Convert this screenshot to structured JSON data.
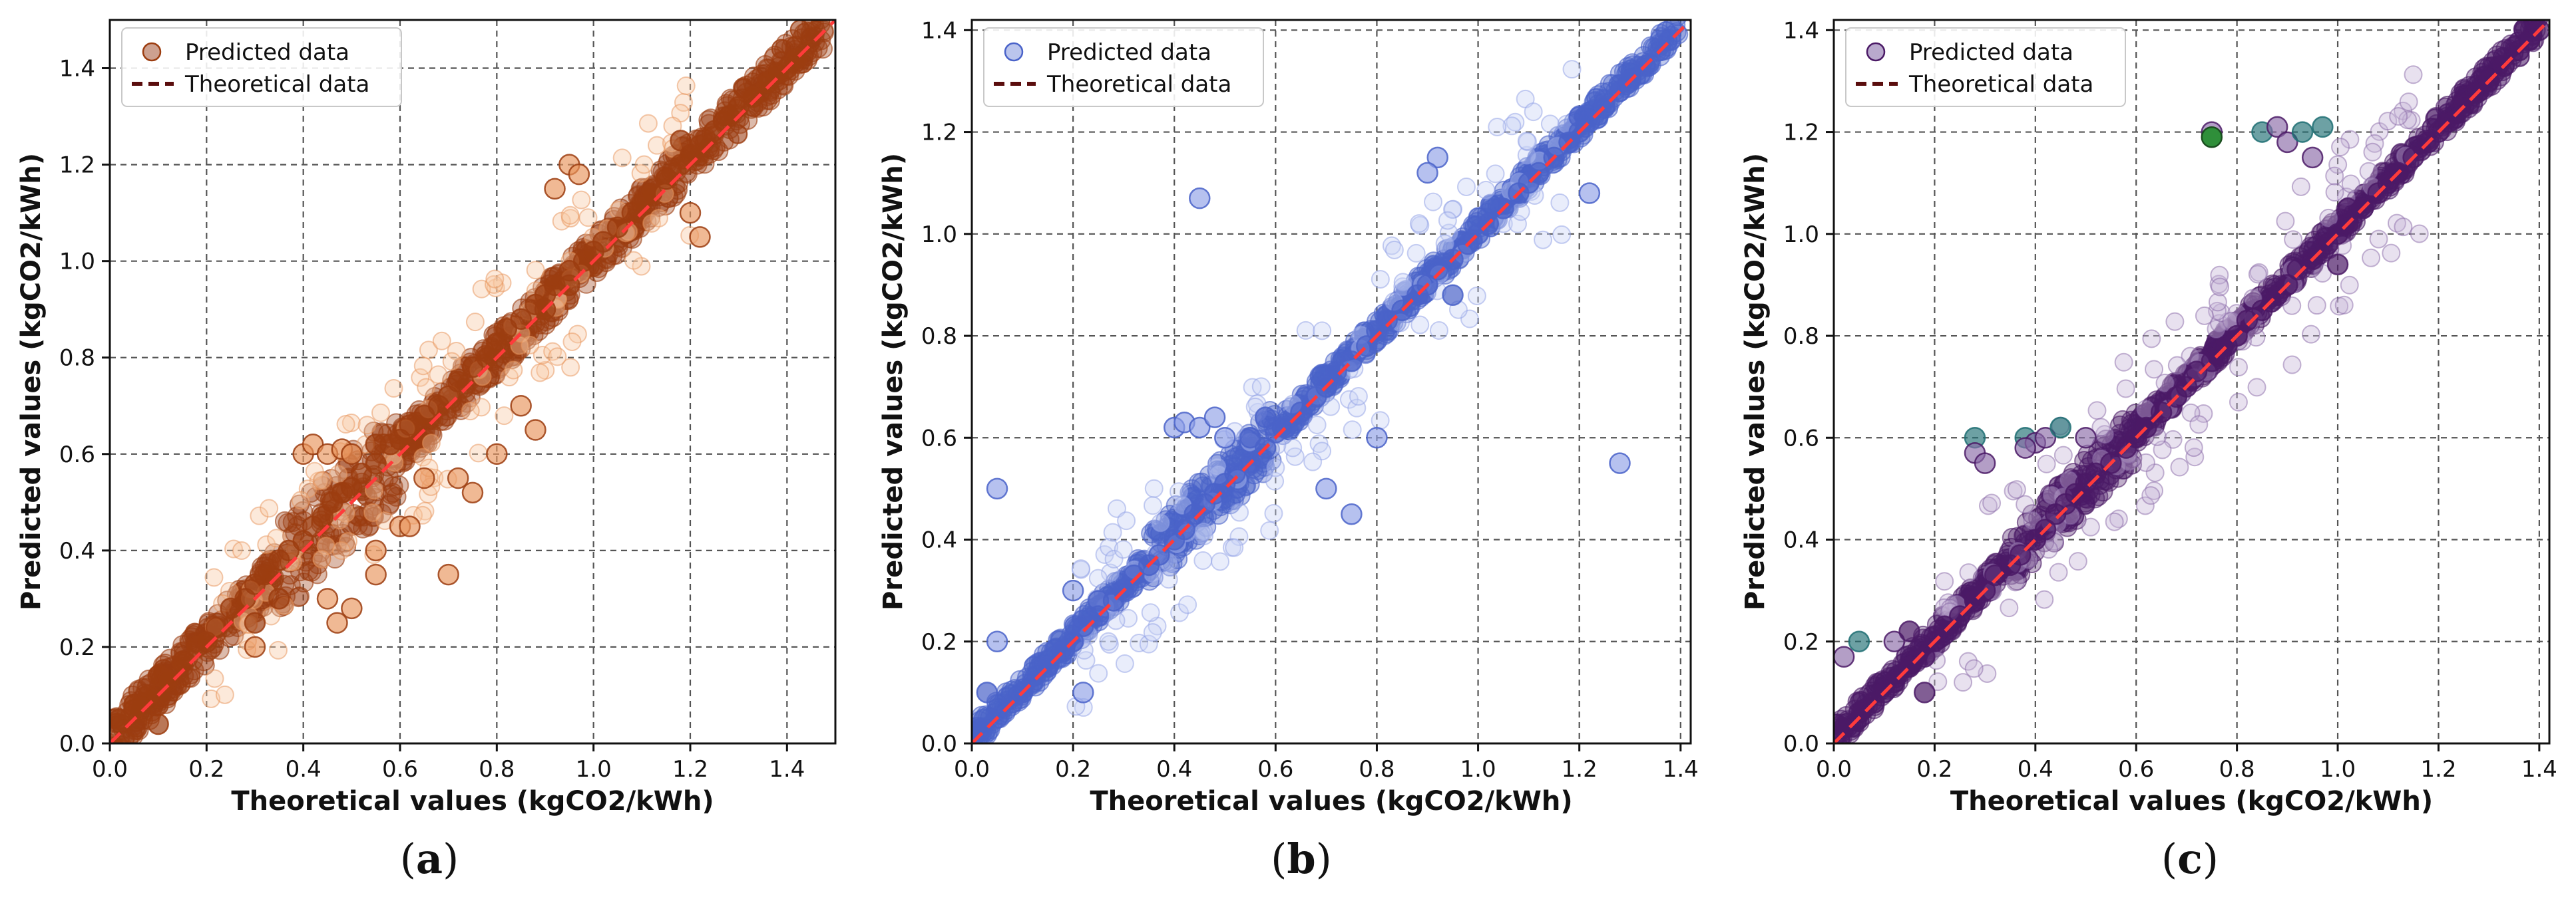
{
  "figure": {
    "captions": [
      {
        "open": "(",
        "letter": "a",
        "close": ")"
      },
      {
        "open": "(",
        "letter": "b",
        "close": ")"
      },
      {
        "open": "(",
        "letter": "c",
        "close": ")"
      }
    ]
  },
  "chart_data": [
    {
      "type": "scatter",
      "xlabel": "Theoretical values (kgCO2/kWh)",
      "ylabel": "Predicted values (kgCO2/kWh)",
      "xlim": [
        0.0,
        1.5
      ],
      "ylim": [
        0.0,
        1.5
      ],
      "xticks": [
        0.0,
        0.2,
        0.4,
        0.6,
        0.8,
        1.0,
        1.2,
        1.4
      ],
      "xtick_labels": [
        "0.0",
        "0.2",
        "0.4",
        "0.6",
        "0.8",
        "1.0",
        "1.2",
        "1.4"
      ],
      "yticks": [
        0.0,
        0.2,
        0.4,
        0.6,
        0.8,
        1.0,
        1.2,
        1.4
      ],
      "ytick_labels": [
        "0.0",
        "0.2",
        "0.4",
        "0.6",
        "0.8",
        "1.0",
        "1.2",
        "1.4"
      ],
      "grid": true,
      "legend_position": "top-left",
      "legend": [
        "Predicted data",
        "Theoretical data"
      ],
      "colors": {
        "main": "#9c3d10",
        "light": "#e8935a",
        "pale": "#f7c9a3",
        "legend_marker": "#c08a74",
        "theory_line": "#5a0d0d",
        "overlay_line": "#ff3b3b"
      },
      "series": [
        {
          "name": "Predicted data",
          "kind": "scatter",
          "x": [
            0.02,
            0.05,
            0.08,
            0.1,
            0.12,
            0.15,
            0.18,
            0.2,
            0.22,
            0.25,
            0.28,
            0.3,
            0.32,
            0.35,
            0.37,
            0.4,
            0.42,
            0.44,
            0.46,
            0.48,
            0.5,
            0.52,
            0.55,
            0.58,
            0.6,
            0.62,
            0.65,
            0.68,
            0.7,
            0.72,
            0.75,
            0.78,
            0.8,
            0.82,
            0.85,
            0.88,
            0.9,
            0.92,
            0.95,
            0.98,
            1.0,
            1.02,
            1.05,
            1.08,
            1.1,
            1.12,
            1.15,
            1.18,
            1.2,
            1.22,
            1.25,
            1.28,
            1.3,
            1.33,
            1.36,
            1.38,
            1.4,
            1.42,
            0.4,
            0.42,
            0.45,
            0.48,
            0.5,
            0.55,
            0.3,
            0.35,
            0.92,
            0.95,
            0.97,
            1.2,
            1.22,
            0.45,
            0.5,
            0.47,
            0.55,
            0.6,
            0.65,
            0.7,
            0.75,
            0.8,
            0.85,
            0.9,
            0.95,
            0.62,
            0.72,
            0.55,
            0.88,
            1.18,
            0.3,
            0.05,
            0.1
          ],
          "y": [
            0.05,
            0.07,
            0.1,
            0.14,
            0.13,
            0.17,
            0.2,
            0.21,
            0.24,
            0.28,
            0.3,
            0.33,
            0.35,
            0.38,
            0.4,
            0.42,
            0.45,
            0.47,
            0.5,
            0.52,
            0.53,
            0.56,
            0.58,
            0.62,
            0.63,
            0.66,
            0.68,
            0.7,
            0.72,
            0.75,
            0.78,
            0.8,
            0.83,
            0.86,
            0.88,
            0.91,
            0.93,
            0.95,
            0.98,
            1.0,
            1.02,
            1.04,
            1.07,
            1.1,
            1.12,
            1.14,
            1.17,
            1.2,
            1.22,
            1.24,
            1.27,
            1.3,
            1.32,
            1.34,
            1.37,
            1.39,
            1.4,
            1.42,
            0.6,
            0.62,
            0.6,
            0.61,
            0.6,
            0.62,
            0.25,
            0.3,
            1.15,
            1.2,
            1.18,
            1.1,
            1.05,
            0.3,
            0.28,
            0.25,
            0.35,
            0.45,
            0.55,
            0.35,
            0.52,
            0.6,
            0.7,
            0.9,
            0.95,
            0.45,
            0.55,
            0.4,
            0.65,
            1.25,
            0.2,
            0.08,
            0.04
          ]
        },
        {
          "name": "Theoretical data",
          "kind": "line",
          "x": [
            0.0,
            1.5
          ],
          "y": [
            0.0,
            1.5
          ]
        }
      ]
    },
    {
      "type": "scatter",
      "xlabel": "Theoretical values (kgCO2/kWh)",
      "ylabel": "Predicted values (kgCO2/kWh)",
      "xlim": [
        0.0,
        1.42
      ],
      "ylim": [
        0.0,
        1.42
      ],
      "xticks": [
        0.0,
        0.2,
        0.4,
        0.6,
        0.8,
        1.0,
        1.2,
        1.4
      ],
      "xtick_labels": [
        "0.0",
        "0.2",
        "0.4",
        "0.6",
        "0.8",
        "1.0",
        "1.2",
        "1.4"
      ],
      "yticks": [
        0.0,
        0.2,
        0.4,
        0.6,
        0.8,
        1.0,
        1.2,
        1.4
      ],
      "ytick_labels": [
        "0.0",
        "0.2",
        "0.4",
        "0.6",
        "0.8",
        "1.0",
        "1.2",
        "1.4"
      ],
      "grid": true,
      "legend_position": "top-left",
      "legend": [
        "Predicted data",
        "Theoretical data"
      ],
      "colors": {
        "main": "#4a63c9",
        "light": "#8fa0e6",
        "pale": "#c9d2f5",
        "legend_marker": "#aab6e8",
        "theory_line": "#5a0d0d",
        "overlay_line": "#ff3b3b"
      },
      "series": [
        {
          "name": "Predicted data",
          "kind": "scatter",
          "x": [
            0.02,
            0.05,
            0.08,
            0.1,
            0.12,
            0.15,
            0.18,
            0.2,
            0.22,
            0.25,
            0.28,
            0.3,
            0.32,
            0.35,
            0.37,
            0.4,
            0.42,
            0.44,
            0.46,
            0.48,
            0.5,
            0.52,
            0.55,
            0.58,
            0.6,
            0.62,
            0.65,
            0.68,
            0.7,
            0.72,
            0.75,
            0.78,
            0.8,
            0.82,
            0.85,
            0.88,
            0.9,
            0.92,
            0.95,
            0.98,
            1.0,
            1.02,
            1.05,
            1.08,
            1.1,
            1.12,
            1.15,
            1.18,
            1.2,
            1.22,
            1.25,
            1.28,
            1.3,
            1.33,
            1.36,
            1.38,
            0.4,
            0.42,
            0.45,
            0.48,
            0.5,
            0.55,
            0.58,
            0.2,
            0.25,
            0.05,
            0.03,
            0.92,
            0.95,
            1.2,
            1.22,
            0.45,
            0.9,
            0.75,
            1.28,
            0.05,
            0.22,
            0.7,
            0.8
          ],
          "y": [
            0.03,
            0.05,
            0.08,
            0.1,
            0.12,
            0.15,
            0.18,
            0.2,
            0.23,
            0.25,
            0.28,
            0.3,
            0.33,
            0.35,
            0.37,
            0.4,
            0.42,
            0.45,
            0.47,
            0.49,
            0.51,
            0.53,
            0.55,
            0.58,
            0.61,
            0.62,
            0.65,
            0.68,
            0.7,
            0.73,
            0.75,
            0.78,
            0.81,
            0.83,
            0.85,
            0.88,
            0.9,
            0.93,
            0.95,
            0.98,
            1.0,
            1.02,
            1.05,
            1.08,
            1.1,
            1.12,
            1.15,
            1.18,
            1.2,
            1.22,
            1.25,
            1.28,
            1.3,
            1.33,
            1.36,
            1.38,
            0.62,
            0.63,
            0.62,
            0.64,
            0.6,
            0.6,
            0.64,
            0.3,
            0.28,
            0.2,
            0.1,
            1.15,
            0.88,
            1.23,
            1.08,
            1.07,
            1.12,
            0.45,
            0.55,
            0.5,
            0.1,
            0.5,
            0.6
          ]
        },
        {
          "name": "Theoretical data",
          "kind": "line",
          "x": [
            0.0,
            1.42
          ],
          "y": [
            0.0,
            1.42
          ]
        }
      ]
    },
    {
      "type": "scatter",
      "xlabel": "Theoretical values (kgCO2/kWh)",
      "ylabel": "Predicted values (kgCO2/kWh)",
      "xlim": [
        0.0,
        1.42
      ],
      "ylim": [
        0.0,
        1.42
      ],
      "xticks": [
        0.0,
        0.2,
        0.4,
        0.6,
        0.8,
        1.0,
        1.2,
        1.4
      ],
      "xtick_labels": [
        "0.0",
        "0.2",
        "0.4",
        "0.6",
        "0.8",
        "1.0",
        "1.2",
        "1.4"
      ],
      "yticks": [
        0.0,
        0.2,
        0.4,
        0.6,
        0.8,
        1.0,
        1.2,
        1.4
      ],
      "ytick_labels": [
        "0.0",
        "0.2",
        "0.4",
        "0.6",
        "0.8",
        "1.0",
        "1.2",
        "1.4"
      ],
      "grid": true,
      "legend_position": "top-left",
      "legend": [
        "Predicted data",
        "Theoretical data"
      ],
      "colors": {
        "main": "#4b1a66",
        "light": "#8a6aa8",
        "pale": "#c6b4d8",
        "accent": "#1f6f73",
        "accent2": "#2f8f3a",
        "legend_marker": "#a893c0",
        "theory_line": "#5a0d0d",
        "overlay_line": "#ff3b3b"
      },
      "series": [
        {
          "name": "Predicted data",
          "kind": "scatter",
          "x": [
            0.02,
            0.05,
            0.08,
            0.1,
            0.12,
            0.15,
            0.18,
            0.2,
            0.22,
            0.25,
            0.28,
            0.3,
            0.32,
            0.35,
            0.37,
            0.4,
            0.42,
            0.44,
            0.46,
            0.48,
            0.5,
            0.52,
            0.55,
            0.58,
            0.6,
            0.62,
            0.65,
            0.68,
            0.7,
            0.72,
            0.75,
            0.78,
            0.8,
            0.82,
            0.85,
            0.88,
            0.9,
            0.92,
            0.95,
            0.98,
            1.0,
            1.02,
            1.05,
            1.08,
            1.1,
            1.12,
            1.15,
            1.18,
            1.2,
            1.22,
            1.25,
            1.28,
            1.3,
            1.33,
            1.36,
            1.38,
            1.4,
            0.28,
            0.28,
            0.3,
            0.38,
            0.4,
            0.42,
            0.45,
            0.5,
            0.75,
            0.85,
            0.88,
            0.9,
            0.93,
            0.95,
            1.02,
            1.0,
            0.18,
            0.02,
            0.05,
            0.12,
            0.15,
            0.97,
            0.38
          ],
          "y": [
            0.03,
            0.06,
            0.08,
            0.1,
            0.12,
            0.15,
            0.17,
            0.2,
            0.23,
            0.25,
            0.28,
            0.3,
            0.33,
            0.35,
            0.37,
            0.4,
            0.42,
            0.45,
            0.47,
            0.49,
            0.51,
            0.53,
            0.55,
            0.58,
            0.6,
            0.62,
            0.65,
            0.68,
            0.7,
            0.73,
            0.75,
            0.78,
            0.8,
            0.83,
            0.85,
            0.88,
            0.9,
            0.93,
            0.95,
            0.98,
            1.0,
            1.02,
            1.05,
            1.08,
            1.1,
            1.12,
            1.15,
            1.18,
            1.2,
            1.22,
            1.25,
            1.28,
            1.3,
            1.33,
            1.36,
            1.38,
            1.4,
            0.6,
            0.57,
            0.55,
            0.6,
            0.59,
            0.6,
            0.62,
            0.6,
            1.2,
            1.2,
            1.21,
            1.18,
            1.2,
            1.15,
            1.05,
            0.94,
            0.1,
            0.17,
            0.2,
            0.2,
            0.22,
            1.21,
            0.58
          ]
        },
        {
          "name": "Theoretical data",
          "kind": "line",
          "x": [
            0.0,
            1.42
          ],
          "y": [
            0.0,
            1.42
          ]
        }
      ]
    }
  ]
}
